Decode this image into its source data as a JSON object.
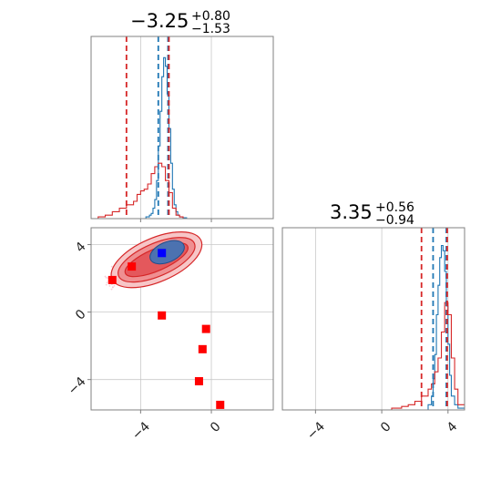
{
  "chart_data": [
    {
      "type": "histogram",
      "panel": "top-left-marginal",
      "title_value": "−3.25",
      "title_plus": "+0.80",
      "title_minus": "−1.53",
      "xlim": [
        -6.8,
        3.5
      ],
      "x_ticks": [
        -4,
        0
      ],
      "grid": true,
      "reference_lines": {
        "blue_dashed": [
          -3.0,
          -2.45
        ],
        "red_dashed": [
          -4.8,
          -2.4
        ]
      },
      "series": [
        {
          "color": "#1f77b4",
          "x": [
            -6.8,
            -4.0,
            -3.7,
            -3.5,
            -3.4,
            -3.3,
            -3.2,
            -3.1,
            -3.0,
            -2.9,
            -2.8,
            -2.7,
            -2.6,
            -2.5,
            -2.4,
            -2.3,
            -2.2,
            -2.1,
            -2.0,
            -1.9,
            -1.8,
            -1.6,
            -1.4,
            3.5
          ],
          "y": [
            0,
            0,
            0.01,
            0.02,
            0.03,
            0.06,
            0.11,
            0.22,
            0.42,
            0.62,
            0.82,
            0.93,
            0.88,
            0.72,
            0.52,
            0.32,
            0.17,
            0.08,
            0.04,
            0.02,
            0.01,
            0.005,
            0,
            0
          ]
        },
        {
          "color": "#d62728",
          "x": [
            -6.8,
            -6.4,
            -6.0,
            -5.6,
            -5.2,
            -4.8,
            -4.4,
            -4.2,
            -4.0,
            -3.8,
            -3.6,
            -3.4,
            -3.2,
            -3.0,
            -2.8,
            -2.6,
            -2.4,
            -2.2,
            -2.0,
            -1.8,
            -1.6,
            -1.4,
            -1.0,
            3.5
          ],
          "y": [
            0,
            0.01,
            0.02,
            0.04,
            0.06,
            0.08,
            0.1,
            0.14,
            0.16,
            0.17,
            0.2,
            0.26,
            0.3,
            0.32,
            0.3,
            0.22,
            0.15,
            0.06,
            0.02,
            0.01,
            0,
            0,
            0,
            0
          ]
        }
      ]
    },
    {
      "type": "scatter",
      "panel": "bottom-left-2d",
      "xlim": [
        -6.8,
        3.5
      ],
      "ylim": [
        -5.8,
        5.0
      ],
      "x_ticks": [
        -4,
        0
      ],
      "y_ticks": [
        -4,
        0,
        4
      ],
      "grid": true,
      "points_red": [
        {
          "x": -5.6,
          "y": 1.9
        },
        {
          "x": -4.5,
          "y": 2.7
        },
        {
          "x": -2.8,
          "y": -0.2
        },
        {
          "x": -0.3,
          "y": -1.0
        },
        {
          "x": -0.5,
          "y": -2.2
        },
        {
          "x": -0.7,
          "y": -4.1
        },
        {
          "x": 0.5,
          "y": -5.5
        }
      ],
      "point_blue": {
        "x": -2.8,
        "y": 3.5
      }
    },
    {
      "type": "histogram",
      "panel": "bottom-right-marginal",
      "title_value": "3.35",
      "title_plus": "+0.56",
      "title_minus": "−0.94",
      "xlim": [
        -6.0,
        5.0
      ],
      "x_ticks": [
        -4,
        0,
        4
      ],
      "grid": true,
      "reference_lines": {
        "blue_dashed": [
          3.1,
          3.9
        ],
        "red_dashed": [
          2.4,
          3.95
        ]
      },
      "series": [
        {
          "color": "#1f77b4",
          "x": [
            -6.0,
            2.6,
            2.8,
            3.0,
            3.1,
            3.2,
            3.3,
            3.4,
            3.5,
            3.6,
            3.7,
            3.8,
            3.9,
            4.0,
            4.1,
            4.2,
            4.4,
            4.6,
            5.0
          ],
          "y": [
            0,
            0,
            0.03,
            0.08,
            0.18,
            0.32,
            0.55,
            0.72,
            0.88,
            0.95,
            0.92,
            0.8,
            0.6,
            0.38,
            0.2,
            0.08,
            0.03,
            0.01,
            0
          ]
        },
        {
          "color": "#d62728",
          "x": [
            -6.0,
            0.6,
            1.2,
            1.6,
            2.0,
            2.4,
            2.8,
            3.0,
            3.2,
            3.4,
            3.6,
            3.8,
            4.0,
            4.2,
            4.4,
            4.6,
            5.0
          ],
          "y": [
            0,
            0.01,
            0.02,
            0.03,
            0.05,
            0.08,
            0.12,
            0.15,
            0.22,
            0.3,
            0.45,
            0.62,
            0.55,
            0.3,
            0.12,
            0.03,
            0.01
          ]
        }
      ]
    }
  ]
}
